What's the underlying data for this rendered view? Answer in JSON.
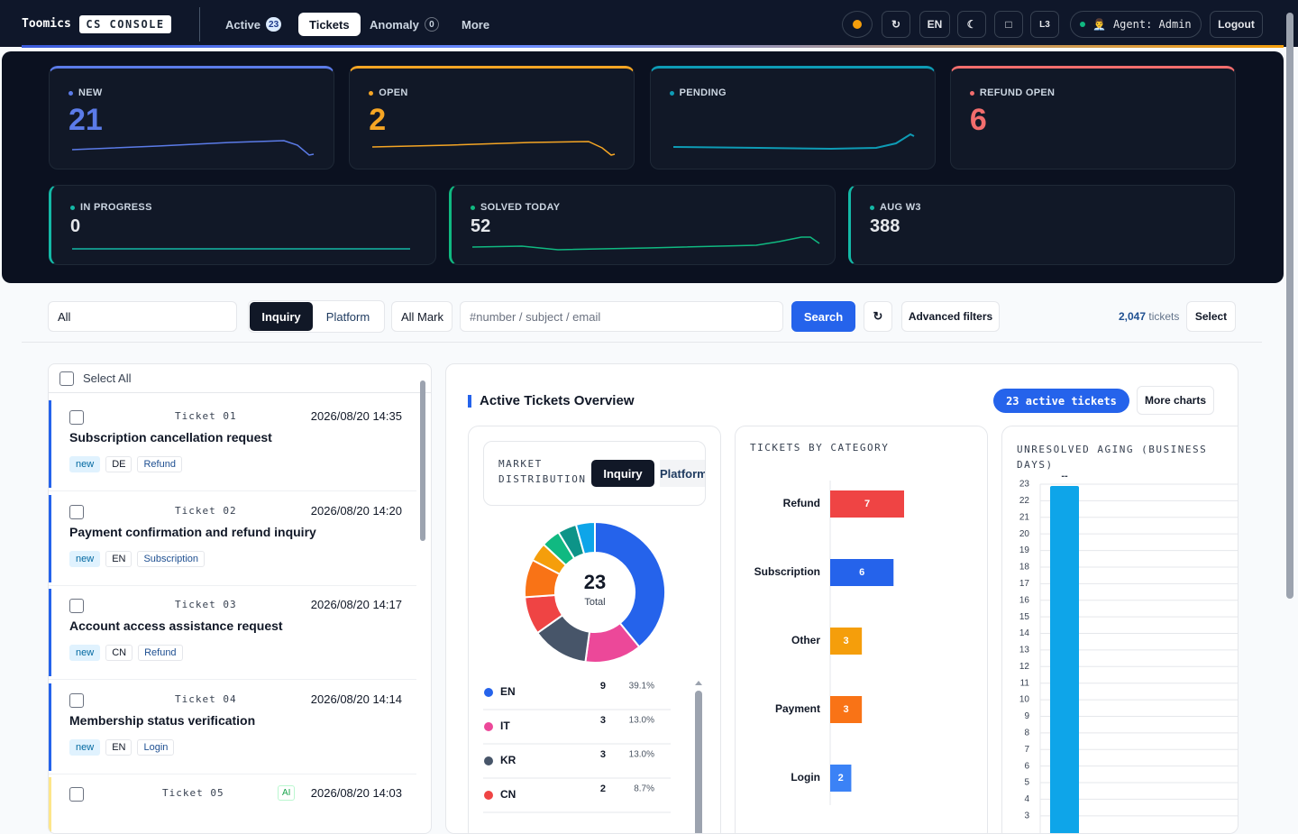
{
  "header": {
    "brand": "Toomics",
    "badge": "CS CONSOLE",
    "nav": [
      {
        "label": "Active",
        "count": 23
      },
      {
        "label": "Tickets"
      },
      {
        "label": "Anomaly",
        "count": 0
      },
      {
        "label": "More"
      }
    ],
    "language": "EN",
    "level": "L3",
    "agent": "Agent: Admin",
    "logout": "Logout"
  },
  "stats": [
    {
      "label": "NEW",
      "value": 21,
      "color": "#5b7be8"
    },
    {
      "label": "OPEN",
      "value": 2,
      "color": "#f5a524"
    },
    {
      "label": "PENDING",
      "color": "#0e9bb5"
    },
    {
      "label": "REFUND OPEN",
      "value": 6,
      "color": "#f26d6d"
    }
  ],
  "stats_secondary": [
    {
      "label": "IN PROGRESS",
      "value": 0,
      "color": "#14b8a6"
    },
    {
      "label": "SOLVED TODAY",
      "value": 52,
      "color": "#10b981"
    },
    {
      "label": "AUG W3",
      "value": 388,
      "color": "#14b8a6"
    }
  ],
  "toolbar": {
    "market": "All",
    "tabs": [
      "Inquiry",
      "Platform"
    ],
    "mark": "All Mark",
    "search_placeholder": "#number / subject / email",
    "search": "Search",
    "advanced": "Advanced filters",
    "count": "2,047",
    "count_unit": "tickets",
    "select": "Select"
  },
  "list": {
    "select_all": "Select All",
    "tickets": [
      {
        "id": "Ticket 01",
        "time": "2026/08/20 14:35",
        "subject": "Subscription cancellation request",
        "tags": [
          "new",
          "DE",
          "Refund"
        ]
      },
      {
        "id": "Ticket 02",
        "time": "2026/08/20 14:20",
        "subject": "Payment confirmation and refund inquiry",
        "tags": [
          "new",
          "EN",
          "Subscription"
        ]
      },
      {
        "id": "Ticket 03",
        "time": "2026/08/20 14:17",
        "subject": "Account access assistance request",
        "tags": [
          "new",
          "CN",
          "Refund"
        ]
      },
      {
        "id": "Ticket 04",
        "time": "2026/08/20 14:14",
        "subject": "Membership status verification",
        "tags": [
          "new",
          "EN",
          "Login"
        ]
      },
      {
        "id": "Ticket 05",
        "badge": "AI",
        "time": "2026/08/20 14:03"
      }
    ]
  },
  "overview": {
    "title": "Active Tickets Overview",
    "badge": "23 active tickets",
    "more": "More charts"
  },
  "chart_data": [
    {
      "type": "pie",
      "title": "MARKET DISTRIBUTION",
      "tabs": [
        "Inquiry",
        "Platform"
      ],
      "total": 23,
      "total_label": "Total",
      "categories": [
        "EN",
        "IT",
        "KR",
        "CN",
        null,
        null,
        null,
        null,
        null
      ],
      "values": [
        9,
        3,
        3,
        2,
        2,
        1,
        1,
        1,
        1
      ],
      "share_labels": [
        "39.1%",
        "13.0%",
        "13.0%",
        "8.7%",
        null,
        null,
        null,
        null,
        null
      ],
      "colors": [
        "#2563eb",
        "#ec4899",
        "#475569",
        "#ef4444",
        "#f97316",
        "#f59e0b",
        "#10b981",
        "#0d9488",
        "#0ea5e9"
      ]
    },
    {
      "type": "hbar",
      "title": "TICKETS BY CATEGORY",
      "categories": [
        "Refund",
        "Subscription",
        "Other",
        "Payment",
        "Login"
      ],
      "values": [
        7,
        6,
        3,
        3,
        2
      ],
      "colors": [
        "#ef4444",
        "#2563eb",
        "#f59e0b",
        "#f97316",
        "#3b82f6"
      ],
      "xlim": [
        0,
        14
      ]
    },
    {
      "type": "bar",
      "title": "UNRESOLVED AGING (BUSINESS DAYS)",
      "categories": [
        null
      ],
      "values": [
        23
      ],
      "annotation": "--",
      "color": "#0ea5e9",
      "ylim": [
        0,
        23
      ],
      "yticks": [
        3,
        4,
        5,
        6,
        7,
        8,
        9,
        10,
        11,
        12,
        13,
        14,
        15,
        16,
        17,
        18,
        19,
        20,
        21,
        22,
        23
      ],
      "grid": true
    }
  ]
}
